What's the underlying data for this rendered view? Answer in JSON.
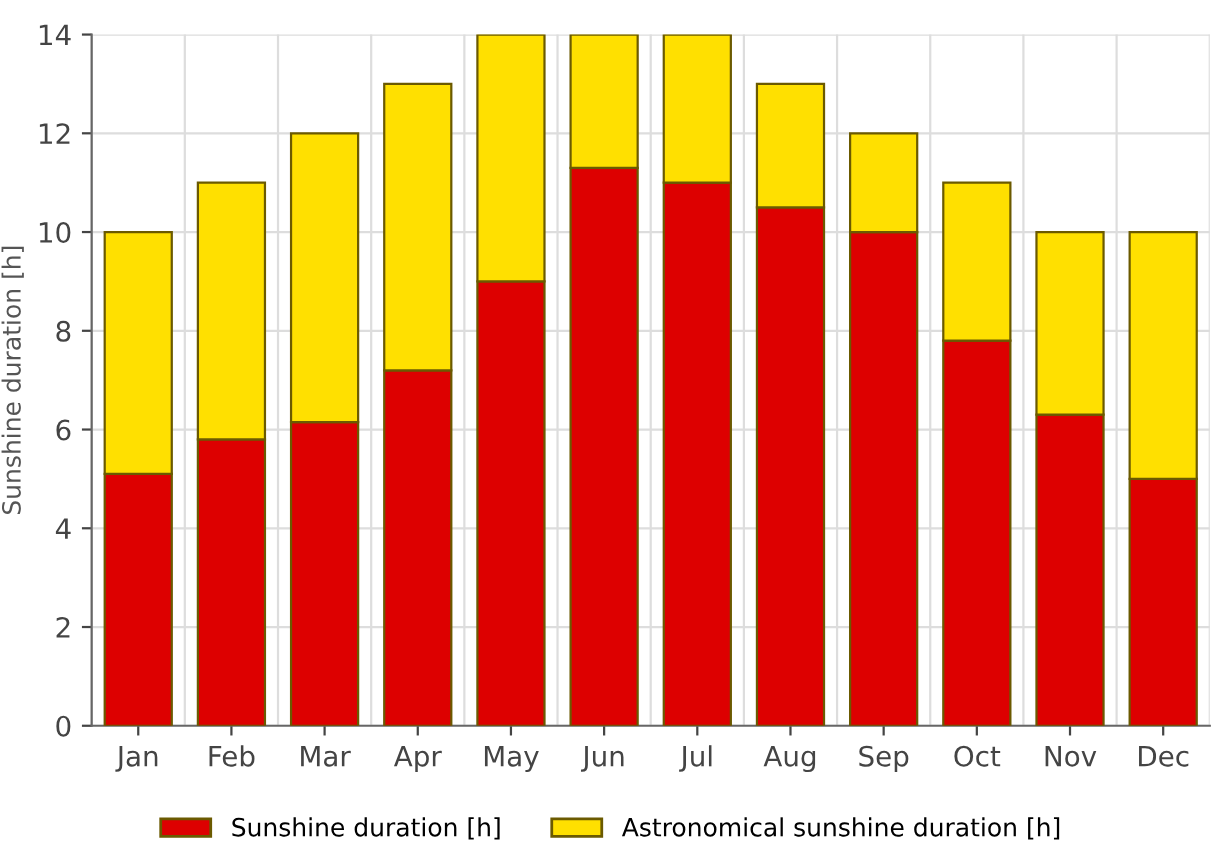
{
  "chart_data": {
    "type": "bar",
    "stacked": true,
    "ylabel": "Sunshine duration [h]",
    "categories": [
      "Jan",
      "Feb",
      "Mar",
      "Apr",
      "May",
      "Jun",
      "Jul",
      "Aug",
      "Sep",
      "Oct",
      "Nov",
      "Dec"
    ],
    "series": [
      {
        "name": "Sunshine duration [h]",
        "color": "#dd0000",
        "values": [
          5.1,
          5.8,
          6.15,
          7.2,
          9.0,
          11.3,
          11.0,
          10.5,
          10.0,
          7.8,
          6.3,
          5.0
        ]
      },
      {
        "name": "Astronomical sunshine duration [h]",
        "color": "#ffe000",
        "values": [
          4.9,
          5.2,
          5.85,
          5.8,
          5.0,
          2.7,
          3.0,
          2.5,
          2.0,
          3.2,
          3.7,
          5.0
        ]
      }
    ],
    "ylim": [
      0,
      14
    ],
    "yticks": [
      0,
      2,
      4,
      6,
      8,
      10,
      12,
      14
    ],
    "grid": true,
    "legend": "bottom"
  }
}
